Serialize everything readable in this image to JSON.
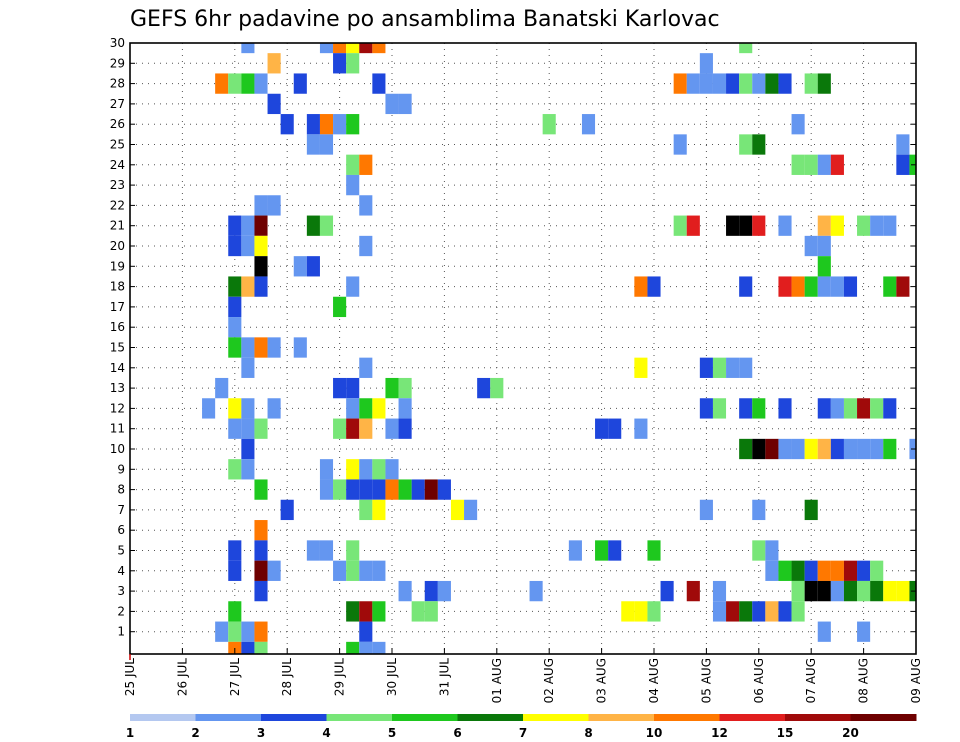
{
  "chart_data": {
    "type": "heatmap",
    "title": "GEFS 6hr padavine po ansamblima Banatski Karlovac",
    "xlabel": "",
    "ylabel": "",
    "x_ticks": [
      "25 JUL",
      "26 JUL",
      "27 JUL",
      "28 JUL",
      "29 JUL",
      "30 JUL",
      "31 JUL",
      "01 AUG",
      "02 AUG",
      "03 AUG",
      "04 AUG",
      "05 AUG",
      "06 AUG",
      "07 AUG",
      "08 AUG",
      "09 AUG"
    ],
    "y_ticks": [
      "1",
      "2",
      "3",
      "4",
      "5",
      "6",
      "7",
      "8",
      "9",
      "10",
      "11",
      "12",
      "13",
      "14",
      "15",
      "16",
      "17",
      "18",
      "19",
      "20",
      "21",
      "22",
      "23",
      "24",
      "25",
      "26",
      "27",
      "28",
      "29",
      "30"
    ],
    "xlim": [
      0,
      60
    ],
    "ylim": [
      0,
      30
    ],
    "grid": true,
    "colorbar": {
      "colors": [
        "#b4c8f0",
        "#6496f0",
        "#1e46dc",
        "#78e678",
        "#1ec81e",
        "#0a780a",
        "#ffff00",
        "#ffb446",
        "#ff7800",
        "#e11e1e",
        "#a00a0a",
        "#6e0000"
      ],
      "labels": [
        "1",
        "2",
        "3",
        "4",
        "5",
        "6",
        "7",
        "8",
        "10",
        "12",
        "15",
        "20"
      ]
    },
    "cells": [
      [
        9,
        30,
        1
      ],
      [
        15,
        30,
        1
      ],
      [
        16,
        30,
        8
      ],
      [
        17,
        30,
        6
      ],
      [
        18,
        30,
        10
      ],
      [
        19,
        30,
        8
      ],
      [
        47,
        30,
        3
      ],
      [
        11,
        29,
        7
      ],
      [
        16,
        29,
        2
      ],
      [
        17,
        29,
        3
      ],
      [
        44,
        29,
        1
      ],
      [
        7,
        28,
        8
      ],
      [
        8,
        28,
        3
      ],
      [
        9,
        28,
        4
      ],
      [
        10,
        28,
        1
      ],
      [
        13,
        28,
        2
      ],
      [
        19,
        28,
        2
      ],
      [
        42,
        28,
        8
      ],
      [
        43,
        28,
        1
      ],
      [
        44,
        28,
        1
      ],
      [
        45,
        28,
        1
      ],
      [
        46,
        28,
        2
      ],
      [
        47,
        28,
        3
      ],
      [
        48,
        28,
        1
      ],
      [
        49,
        28,
        5
      ],
      [
        50,
        28,
        2
      ],
      [
        52,
        28,
        3
      ],
      [
        53,
        28,
        5
      ],
      [
        11,
        27,
        2
      ],
      [
        20,
        27,
        1
      ],
      [
        21,
        27,
        1
      ],
      [
        12,
        26,
        2
      ],
      [
        14,
        26,
        2
      ],
      [
        15,
        26,
        8
      ],
      [
        16,
        26,
        1
      ],
      [
        17,
        26,
        4
      ],
      [
        32,
        26,
        3
      ],
      [
        35,
        26,
        1
      ],
      [
        51,
        26,
        1
      ],
      [
        14,
        25,
        1
      ],
      [
        15,
        25,
        1
      ],
      [
        42,
        25,
        1
      ],
      [
        47,
        25,
        3
      ],
      [
        48,
        25,
        5
      ],
      [
        59,
        25,
        1
      ],
      [
        17,
        24,
        3
      ],
      [
        18,
        24,
        8
      ],
      [
        51,
        24,
        3
      ],
      [
        52,
        24,
        3
      ],
      [
        53,
        24,
        1
      ],
      [
        54,
        24,
        9
      ],
      [
        59,
        24,
        2
      ],
      [
        60,
        24,
        4
      ],
      [
        17,
        23,
        1
      ],
      [
        10,
        22,
        1
      ],
      [
        11,
        22,
        1
      ],
      [
        18,
        22,
        1
      ],
      [
        8,
        21,
        2
      ],
      [
        9,
        21,
        1
      ],
      [
        10,
        21,
        11
      ],
      [
        14,
        21,
        5
      ],
      [
        15,
        21,
        3
      ],
      [
        42,
        21,
        3
      ],
      [
        43,
        21,
        9
      ],
      [
        46,
        21,
        12
      ],
      [
        47,
        21,
        12
      ],
      [
        48,
        21,
        9
      ],
      [
        50,
        21,
        1
      ],
      [
        53,
        21,
        7
      ],
      [
        54,
        21,
        6
      ],
      [
        56,
        21,
        3
      ],
      [
        57,
        21,
        1
      ],
      [
        58,
        21,
        1
      ],
      [
        8,
        20,
        2
      ],
      [
        9,
        20,
        1
      ],
      [
        10,
        20,
        6
      ],
      [
        18,
        20,
        1
      ],
      [
        52,
        20,
        1
      ],
      [
        53,
        20,
        1
      ],
      [
        10,
        19,
        12
      ],
      [
        13,
        19,
        1
      ],
      [
        14,
        19,
        2
      ],
      [
        53,
        19,
        4
      ],
      [
        8,
        18,
        5
      ],
      [
        9,
        18,
        7
      ],
      [
        10,
        18,
        2
      ],
      [
        17,
        18,
        1
      ],
      [
        39,
        18,
        8
      ],
      [
        40,
        18,
        2
      ],
      [
        47,
        18,
        2
      ],
      [
        50,
        18,
        9
      ],
      [
        51,
        18,
        8
      ],
      [
        52,
        18,
        4
      ],
      [
        53,
        18,
        1
      ],
      [
        54,
        18,
        1
      ],
      [
        55,
        18,
        2
      ],
      [
        58,
        18,
        4
      ],
      [
        59,
        18,
        10
      ],
      [
        16,
        17,
        4
      ],
      [
        8,
        17,
        2
      ],
      [
        8,
        16,
        1
      ],
      [
        8,
        15,
        4
      ],
      [
        9,
        15,
        1
      ],
      [
        10,
        15,
        8
      ],
      [
        11,
        15,
        1
      ],
      [
        13,
        15,
        1
      ],
      [
        9,
        14,
        1
      ],
      [
        18,
        14,
        1
      ],
      [
        39,
        14,
        6
      ],
      [
        44,
        14,
        2
      ],
      [
        45,
        14,
        3
      ],
      [
        46,
        14,
        1
      ],
      [
        47,
        14,
        1
      ],
      [
        7,
        13,
        1
      ],
      [
        16,
        13,
        2
      ],
      [
        17,
        13,
        2
      ],
      [
        20,
        13,
        4
      ],
      [
        21,
        13,
        3
      ],
      [
        27,
        13,
        2
      ],
      [
        28,
        13,
        3
      ],
      [
        6,
        12,
        1
      ],
      [
        8,
        12,
        6
      ],
      [
        9,
        12,
        1
      ],
      [
        11,
        12,
        1
      ],
      [
        17,
        12,
        1
      ],
      [
        18,
        12,
        4
      ],
      [
        19,
        12,
        6
      ],
      [
        21,
        12,
        1
      ],
      [
        44,
        12,
        2
      ],
      [
        45,
        12,
        3
      ],
      [
        47,
        12,
        2
      ],
      [
        48,
        12,
        4
      ],
      [
        50,
        12,
        2
      ],
      [
        53,
        12,
        2
      ],
      [
        54,
        12,
        1
      ],
      [
        55,
        12,
        3
      ],
      [
        56,
        12,
        10
      ],
      [
        57,
        12,
        3
      ],
      [
        58,
        12,
        2
      ],
      [
        8,
        11,
        1
      ],
      [
        9,
        11,
        1
      ],
      [
        10,
        11,
        3
      ],
      [
        16,
        11,
        3
      ],
      [
        17,
        11,
        10
      ],
      [
        18,
        11,
        7
      ],
      [
        20,
        11,
        1
      ],
      [
        21,
        11,
        2
      ],
      [
        36,
        11,
        2
      ],
      [
        37,
        11,
        2
      ],
      [
        39,
        11,
        1
      ],
      [
        9,
        10,
        2
      ],
      [
        47,
        10,
        5
      ],
      [
        48,
        10,
        12
      ],
      [
        49,
        10,
        11
      ],
      [
        50,
        10,
        1
      ],
      [
        51,
        10,
        1
      ],
      [
        52,
        10,
        6
      ],
      [
        53,
        10,
        7
      ],
      [
        54,
        10,
        2
      ],
      [
        55,
        10,
        1
      ],
      [
        56,
        10,
        1
      ],
      [
        57,
        10,
        1
      ],
      [
        58,
        10,
        4
      ],
      [
        60,
        10,
        1
      ],
      [
        8,
        9,
        3
      ],
      [
        9,
        9,
        1
      ],
      [
        15,
        9,
        1
      ],
      [
        17,
        9,
        6
      ],
      [
        18,
        9,
        1
      ],
      [
        19,
        9,
        3
      ],
      [
        20,
        9,
        1
      ],
      [
        10,
        8,
        4
      ],
      [
        15,
        8,
        1
      ],
      [
        16,
        8,
        3
      ],
      [
        17,
        8,
        2
      ],
      [
        18,
        8,
        2
      ],
      [
        19,
        8,
        2
      ],
      [
        20,
        8,
        8
      ],
      [
        21,
        8,
        4
      ],
      [
        22,
        8,
        2
      ],
      [
        23,
        8,
        11
      ],
      [
        24,
        8,
        2
      ],
      [
        12,
        7,
        2
      ],
      [
        18,
        7,
        3
      ],
      [
        19,
        7,
        6
      ],
      [
        25,
        7,
        6
      ],
      [
        26,
        7,
        1
      ],
      [
        44,
        7,
        1
      ],
      [
        48,
        7,
        1
      ],
      [
        52,
        7,
        5
      ],
      [
        10,
        6,
        8
      ],
      [
        8,
        5,
        2
      ],
      [
        10,
        5,
        2
      ],
      [
        14,
        5,
        1
      ],
      [
        15,
        5,
        1
      ],
      [
        17,
        5,
        3
      ],
      [
        34,
        5,
        1
      ],
      [
        36,
        5,
        4
      ],
      [
        37,
        5,
        2
      ],
      [
        40,
        5,
        4
      ],
      [
        48,
        5,
        3
      ],
      [
        49,
        5,
        1
      ],
      [
        8,
        4,
        2
      ],
      [
        10,
        4,
        11
      ],
      [
        11,
        4,
        1
      ],
      [
        16,
        4,
        1
      ],
      [
        17,
        4,
        3
      ],
      [
        18,
        4,
        1
      ],
      [
        19,
        4,
        1
      ],
      [
        49,
        4,
        1
      ],
      [
        50,
        4,
        4
      ],
      [
        51,
        4,
        5
      ],
      [
        52,
        4,
        2
      ],
      [
        53,
        4,
        8
      ],
      [
        54,
        4,
        8
      ],
      [
        55,
        4,
        10
      ],
      [
        56,
        4,
        2
      ],
      [
        57,
        4,
        3
      ],
      [
        10,
        3,
        2
      ],
      [
        21,
        3,
        1
      ],
      [
        23,
        3,
        2
      ],
      [
        24,
        3,
        1
      ],
      [
        31,
        3,
        1
      ],
      [
        41,
        3,
        2
      ],
      [
        43,
        3,
        10
      ],
      [
        45,
        3,
        1
      ],
      [
        51,
        3,
        3
      ],
      [
        52,
        3,
        12
      ],
      [
        53,
        3,
        12
      ],
      [
        54,
        3,
        1
      ],
      [
        55,
        3,
        5
      ],
      [
        56,
        3,
        3
      ],
      [
        57,
        3,
        5
      ],
      [
        58,
        3,
        6
      ],
      [
        59,
        3,
        6
      ],
      [
        60,
        3,
        5
      ],
      [
        8,
        2,
        4
      ],
      [
        17,
        2,
        5
      ],
      [
        18,
        2,
        10
      ],
      [
        19,
        2,
        4
      ],
      [
        22,
        2,
        3
      ],
      [
        23,
        2,
        3
      ],
      [
        38,
        2,
        6
      ],
      [
        39,
        2,
        6
      ],
      [
        40,
        2,
        3
      ],
      [
        45,
        2,
        1
      ],
      [
        46,
        2,
        10
      ],
      [
        47,
        2,
        5
      ],
      [
        48,
        2,
        2
      ],
      [
        49,
        2,
        7
      ],
      [
        50,
        2,
        2
      ],
      [
        51,
        2,
        3
      ],
      [
        7,
        1,
        1
      ],
      [
        8,
        1,
        3
      ],
      [
        9,
        1,
        1
      ],
      [
        10,
        1,
        8
      ],
      [
        18,
        1,
        2
      ],
      [
        53,
        1,
        1
      ],
      [
        56,
        1,
        1
      ],
      [
        8,
        0,
        8
      ],
      [
        9,
        0,
        2
      ],
      [
        10,
        0,
        3
      ],
      [
        17,
        0,
        4
      ],
      [
        18,
        0,
        1
      ],
      [
        19,
        0,
        1
      ]
    ]
  }
}
